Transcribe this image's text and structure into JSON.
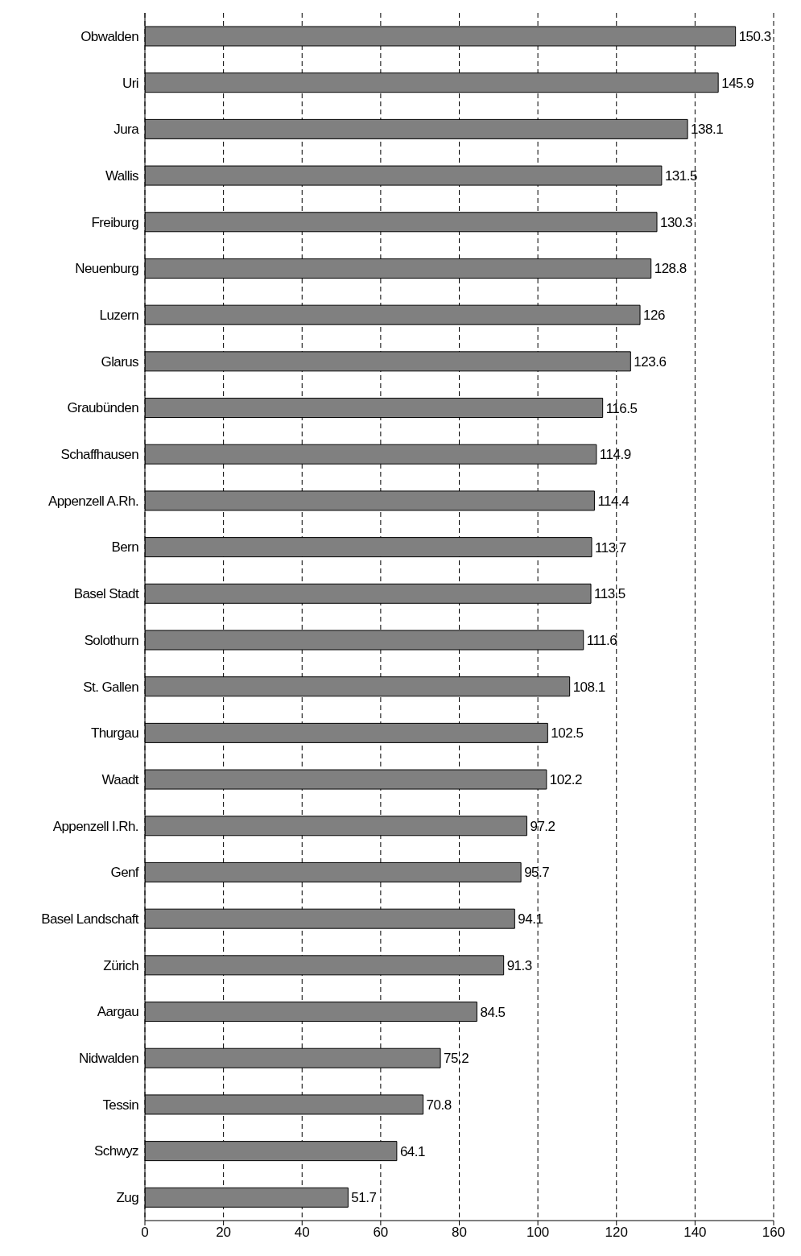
{
  "chart_data": {
    "type": "bar",
    "orientation": "horizontal",
    "categories": [
      "Obwalden",
      "Uri",
      "Jura",
      "Wallis",
      "Freiburg",
      "Neuenburg",
      "Luzern",
      "Glarus",
      "Graubünden",
      "Schaffhausen",
      "Appenzell A.Rh.",
      "Bern",
      "Basel Stadt",
      "Solothurn",
      "St. Gallen",
      "Thurgau",
      "Waadt",
      "Appenzell I.Rh.",
      "Genf",
      "Basel Landschaft",
      "Zürich",
      "Aargau",
      "Nidwalden",
      "Tessin",
      "Schwyz",
      "Zug"
    ],
    "values": [
      150.3,
      145.9,
      138.1,
      131.5,
      130.3,
      128.8,
      126,
      123.6,
      116.5,
      114.9,
      114.4,
      113.7,
      113.5,
      111.6,
      108.1,
      102.5,
      102.2,
      97.2,
      95.7,
      94.1,
      91.3,
      84.5,
      75.2,
      70.8,
      64.1,
      51.7
    ],
    "color": "#808080",
    "xlim": [
      0,
      160
    ],
    "xticks": [
      0,
      20,
      40,
      60,
      80,
      100,
      120,
      140,
      160
    ],
    "grid": "x",
    "data_labels": true
  }
}
